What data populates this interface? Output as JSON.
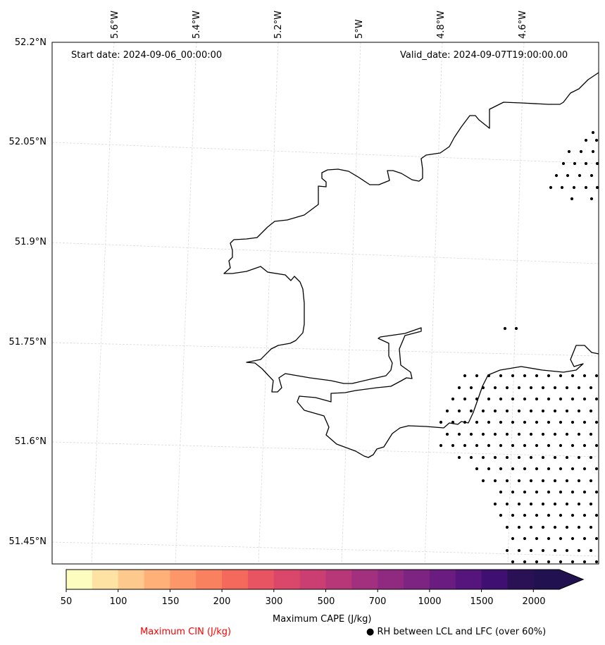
{
  "header": {
    "start_date": "Start date: 2024-09-06_00:00:00",
    "valid_date": "Valid_date: 2024-09-07T19:00:00.00"
  },
  "axes": {
    "lon_labels": [
      "5.6°W",
      "5.4°W",
      "5.2°W",
      "5°W",
      "4.8°W",
      "4.6°W"
    ],
    "lat_labels": [
      "52.2°N",
      "52.05°N",
      "51.9°N",
      "51.75°N",
      "51.6°N",
      "51.45°N"
    ]
  },
  "colorbar": {
    "ticks": [
      "50",
      "100",
      "150",
      "200",
      "300",
      "500",
      "700",
      "1000",
      "1500",
      "2000"
    ],
    "colors": [
      "#fcfdbf",
      "#fde2a3",
      "#fec98d",
      "#feb078",
      "#fd9668",
      "#fa815f",
      "#f4695c",
      "#e95462",
      "#db476a",
      "#ca3e72",
      "#b73779",
      "#a3307e",
      "#902a81",
      "#7d2482",
      "#6a1c81",
      "#56147d",
      "#3f0f72",
      "#2a1155",
      "#221150"
    ],
    "label": "Maximum CAPE (J/kg)"
  },
  "legend": {
    "cin_label": "Maximum CIN (J/kg)",
    "rh_label": "● RH between LCL and LFC (over 60%)",
    "cin_color": "#ff0000"
  }
}
